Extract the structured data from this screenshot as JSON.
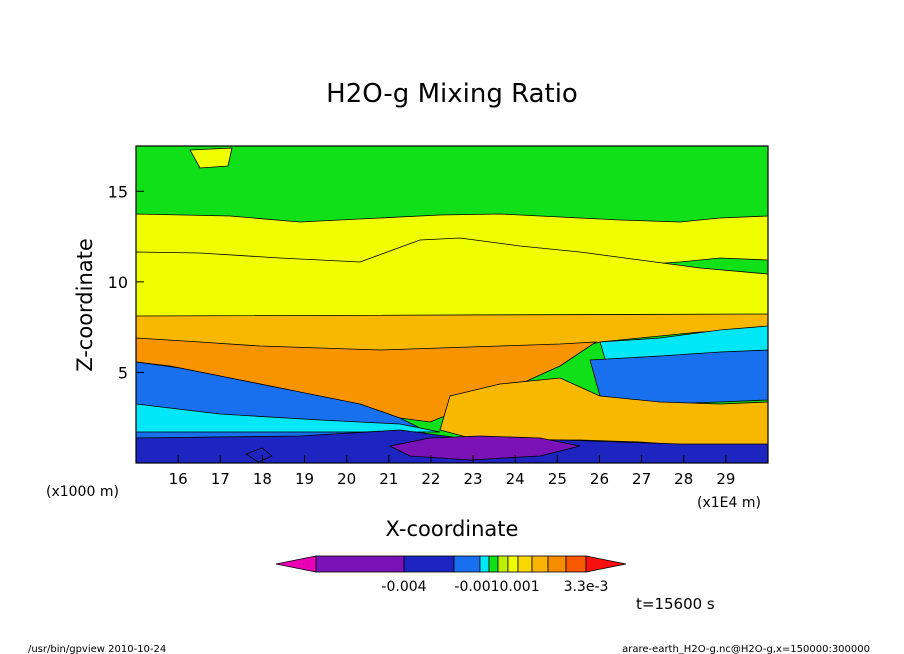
{
  "chart_data": {
    "type": "contour",
    "title": "H2O-g Mixing Ratio",
    "xlabel": "X-coordinate",
    "ylabel": "Z-coordinate",
    "x_unit_note": "(x1E4 m)",
    "y_unit_note": "(x1000 m)",
    "x_ticks": [
      16,
      17,
      18,
      19,
      20,
      21,
      22,
      23,
      24,
      25,
      26,
      27,
      28,
      29
    ],
    "y_ticks": [
      5,
      10,
      15
    ],
    "xlim": [
      15,
      30
    ],
    "ylim": [
      0,
      17.5
    ],
    "layer_colors": {
      "surface": "#1e24c0",
      "low_purple": "#7a12b8",
      "blue": "#1870ee",
      "cyan": "#00e8f8",
      "green": "#10e018",
      "orange": "#f89400",
      "light_orange": "#f8b800",
      "yellow": "#f0ff00",
      "yellow_green": "#bcf000"
    },
    "colorbar": {
      "colors": [
        "#ea00b4",
        "#7a12b8",
        "#1e24c0",
        "#1870ee",
        "#00e8f8",
        "#10e018",
        "#bcf000",
        "#f0ff00",
        "#f8d800",
        "#f8b400",
        "#f88c00",
        "#f85800",
        "#f81010"
      ],
      "tick_labels": [
        "-0.004",
        "-0.0010.001",
        "3.3e-3"
      ]
    },
    "time_label": "t=15600 s"
  },
  "footer": {
    "left": "/usr/bin/gpview  2010-10-24",
    "right": "arare-earth_H2O-g.nc@H2O-g,x=150000:300000"
  }
}
